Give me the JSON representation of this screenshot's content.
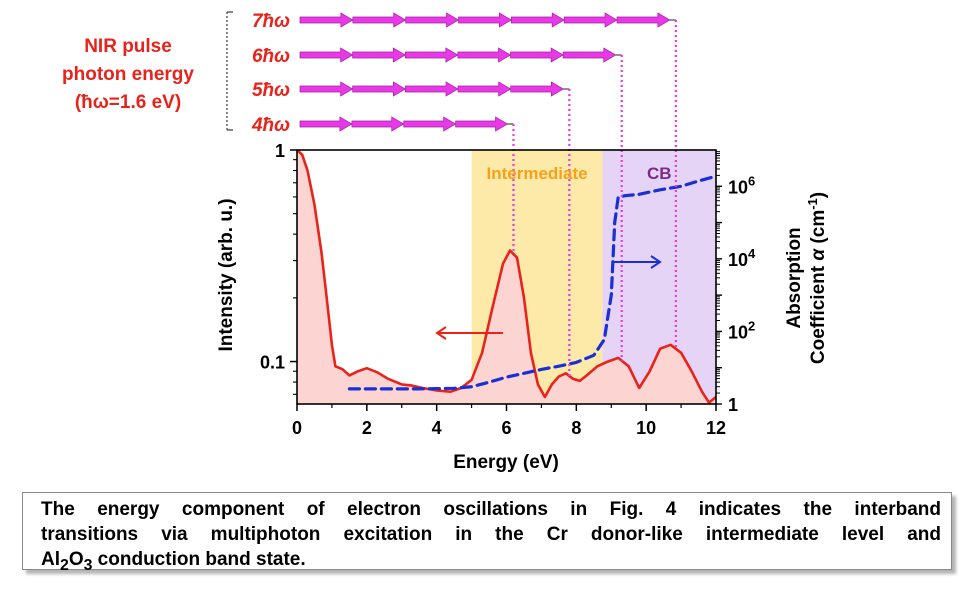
{
  "chart_data": {
    "type": "line",
    "xlabel": "Energy (eV)",
    "ylabel": "Intensity (arb. u.)",
    "y2label_line1": "Absorption",
    "y2label_line2_prefix": "Coefficient ",
    "y2label_alpha": "α",
    "y2label_unit_open": " (cm",
    "y2label_unit_exp": "-1",
    "y2label_unit_close": ")",
    "xlim": [
      0,
      12
    ],
    "x_ticks": [
      0,
      2,
      4,
      6,
      8,
      10,
      12
    ],
    "ylim": [
      0.063,
      1
    ],
    "yscale": "log",
    "y_ticks": [
      {
        "value": 1,
        "label": "1"
      },
      {
        "value": 0.1,
        "label": "0.1"
      }
    ],
    "y2lim": [
      1,
      10000000
    ],
    "y2scale": "log",
    "y2_ticks": [
      {
        "value": 1,
        "base": "1",
        "exp": ""
      },
      {
        "value": 100,
        "base": "10",
        "exp": "2"
      },
      {
        "value": 10000,
        "base": "10",
        "exp": "4"
      },
      {
        "value": 1000000,
        "base": "10",
        "exp": "6"
      }
    ],
    "regions": [
      {
        "label": "Intermediate",
        "x_start": 5.0,
        "x_end": 8.75,
        "color": "#fde9a8",
        "label_color": "#f5a11a"
      },
      {
        "label": "CB",
        "x_start": 8.75,
        "x_end": 12.0,
        "color": "#e6d4f7",
        "label_color": "#7a2a8a"
      }
    ],
    "series": [
      {
        "axis": "left",
        "style": "solid",
        "color": "#e8231b",
        "fill": "#fcd5d3",
        "x": [
          0,
          0.15,
          0.3,
          0.5,
          0.7,
          0.85,
          1.0,
          1.1,
          1.3,
          1.5,
          1.75,
          2.0,
          2.3,
          2.6,
          3.0,
          3.3,
          3.6,
          4.0,
          4.4,
          4.7,
          5.0,
          5.3,
          5.6,
          5.9,
          6.1,
          6.3,
          6.5,
          6.7,
          6.9,
          7.1,
          7.3,
          7.5,
          7.7,
          7.9,
          8.1,
          8.3,
          8.6,
          8.9,
          9.2,
          9.5,
          9.8,
          10.1,
          10.4,
          10.7,
          11.0,
          11.3,
          11.6,
          11.8,
          12.0
        ],
        "y": [
          1.0,
          0.95,
          0.8,
          0.55,
          0.33,
          0.2,
          0.12,
          0.095,
          0.092,
          0.086,
          0.09,
          0.093,
          0.089,
          0.083,
          0.078,
          0.077,
          0.075,
          0.073,
          0.072,
          0.075,
          0.082,
          0.11,
          0.18,
          0.29,
          0.335,
          0.31,
          0.2,
          0.11,
          0.078,
          0.068,
          0.078,
          0.085,
          0.088,
          0.083,
          0.081,
          0.086,
          0.095,
          0.1,
          0.104,
          0.095,
          0.075,
          0.09,
          0.115,
          0.12,
          0.11,
          0.09,
          0.072,
          0.064,
          0.068
        ]
      },
      {
        "axis": "right",
        "style": "dashed",
        "color": "#1a2fd4",
        "x": [
          1.5,
          2.5,
          3.5,
          4.5,
          5.0,
          5.5,
          6.0,
          6.5,
          7.0,
          7.5,
          8.0,
          8.5,
          8.8,
          9.0,
          9.1,
          9.2,
          9.4,
          9.8,
          10.4,
          11.0,
          11.5,
          12.0
        ],
        "y": [
          2.6,
          2.6,
          2.6,
          2.7,
          3.0,
          4.0,
          5.5,
          7.0,
          9.0,
          11.0,
          14.0,
          22.0,
          60.0,
          1000.0,
          100000.0,
          500000.0,
          550000.0,
          600000.0,
          800000.0,
          1000000.0,
          1400000.0,
          1900000.0
        ]
      }
    ],
    "annotations": {
      "legend_title_line1": "NIR pulse",
      "legend_title_line2": "photon energy",
      "legend_title_line3": "(ħω=1.6 eV)",
      "photon_rows": [
        {
          "label": "7ħω",
          "energy": 11.2,
          "marker_x": 10.85
        },
        {
          "label": "6ħω",
          "energy": 9.6,
          "marker_x": 9.3
        },
        {
          "label": "5ħω",
          "energy": 8.0,
          "marker_x": 7.8
        },
        {
          "label": "4ħω",
          "energy": 6.4,
          "marker_x": 6.2
        }
      ],
      "arrow_color": "#e838e8"
    }
  },
  "caption": {
    "line1": "The energy component of electron oscillations in Fig. 4 indicates the interband",
    "line2": "transitions via multiphoton excitation in the Cr donor-like intermediate level and",
    "line3_a": "Al",
    "line3_sub1": "2",
    "line3_b": "O",
    "line3_sub2": "3",
    "line3_c": " conduction band state."
  }
}
